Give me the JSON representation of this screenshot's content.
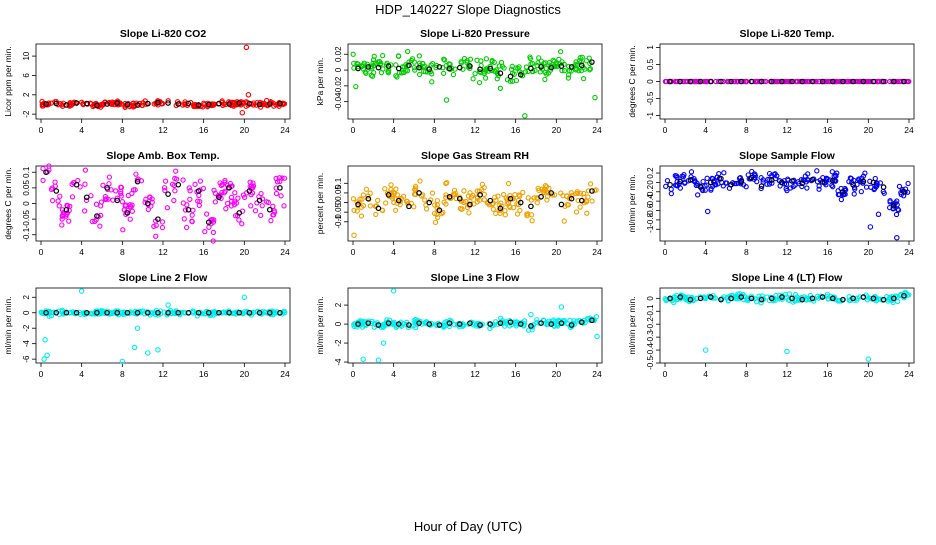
{
  "page_title": "HDP_140227  Slope Diagnostics",
  "x_label": "Hour of Day (UTC)",
  "chart_data": [
    {
      "type": "scatter",
      "title": "Slope Li-820 CO2",
      "ylabel": "Licor ppm per min.",
      "color": "#ff0000",
      "xlim": [
        0,
        24
      ],
      "ylim": [
        -3,
        12.5
      ],
      "xticks": [
        0,
        4,
        8,
        12,
        16,
        20,
        24
      ],
      "yticks": [
        -2,
        2,
        6,
        10
      ],
      "series_spread": 0.45,
      "outliers": [
        {
          "x": 20.2,
          "y": 11.8
        },
        {
          "x": 19.8,
          "y": -1.7
        },
        {
          "x": 20.4,
          "y": 2.0
        }
      ],
      "means": {
        "x": [
          0.5,
          1.5,
          2.5,
          3.5,
          4.5,
          5.5,
          6.5,
          7.5,
          8.5,
          9.5,
          10.5,
          11.5,
          12.5,
          13.5,
          14.5,
          15.5,
          16.5,
          17.5,
          18.5,
          19.5,
          20.5,
          21.5,
          22.5,
          23.5
        ],
        "y": [
          0.1,
          0.2,
          -0.1,
          0.3,
          0.2,
          -0.2,
          0.1,
          0.3,
          0.0,
          -0.1,
          0.2,
          0.4,
          0.3,
          0.1,
          0.2,
          -0.1,
          0.0,
          0.2,
          0.1,
          0.3,
          0.2,
          0.0,
          0.1,
          0.2
        ]
      }
    },
    {
      "type": "scatter",
      "title": "Slope Li-820 Pressure",
      "ylabel": "kPa per min.",
      "color": "#00cc00",
      "xlim": [
        0,
        24
      ],
      "ylim": [
        -0.062,
        0.033
      ],
      "xticks": [
        0,
        4,
        8,
        12,
        16,
        20,
        24
      ],
      "yticks": [
        -0.04,
        -0.02,
        0.0,
        0.02
      ],
      "series_spread": 0.012,
      "outliers": [
        {
          "x": 16.9,
          "y": -0.058
        },
        {
          "x": 23.8,
          "y": -0.035
        },
        {
          "x": 9.2,
          "y": -0.038
        }
      ],
      "means": {
        "x": [
          0.5,
          1.5,
          2.5,
          3.5,
          4.5,
          5.5,
          6.5,
          7.5,
          8.5,
          9.5,
          10.5,
          11.5,
          12.5,
          13.5,
          14.5,
          15.5,
          16.5,
          17.5,
          18.5,
          19.5,
          20.5,
          21.5,
          22.5,
          23.5
        ],
        "y": [
          0.002,
          0.004,
          0.003,
          0.005,
          0.002,
          0.006,
          0.003,
          0.001,
          0.004,
          0.002,
          0.003,
          0.005,
          0.001,
          0.002,
          -0.004,
          -0.008,
          -0.006,
          0.002,
          0.004,
          0.003,
          0.005,
          0.004,
          0.006,
          0.01
        ]
      }
    },
    {
      "type": "scatter",
      "title": "Slope Li-820 Temp.",
      "ylabel": "degrees C per min.",
      "color": "#cc00cc",
      "xlim": [
        0,
        24
      ],
      "ylim": [
        -1.1,
        1.1
      ],
      "xticks": [
        0,
        4,
        8,
        12,
        16,
        20,
        24
      ],
      "yticks": [
        -1.0,
        -0.5,
        0.0,
        0.5,
        1.0
      ],
      "series_spread": 0.0,
      "outliers": [],
      "means": {
        "x": [
          0.5,
          1.5,
          2.5,
          3.5,
          4.5,
          5.5,
          6.5,
          7.5,
          8.5,
          9.5,
          10.5,
          11.5,
          12.5,
          13.5,
          14.5,
          15.5,
          16.5,
          17.5,
          18.5,
          19.5,
          20.5,
          21.5,
          22.5,
          23.5
        ],
        "y": [
          0,
          0,
          0,
          0,
          0,
          0,
          0,
          0,
          0,
          0,
          0,
          0,
          0,
          0,
          0,
          0,
          0,
          0,
          0,
          0,
          0,
          0,
          0,
          0
        ]
      }
    },
    {
      "type": "scatter",
      "title": "Slope Amb. Box Temp.",
      "ylabel": "degrees C per min.",
      "color": "#ff00ff",
      "xlim": [
        0,
        24
      ],
      "ylim": [
        -0.12,
        0.12
      ],
      "xticks": [
        0,
        4,
        8,
        12,
        16,
        20,
        24
      ],
      "yticks": [
        -0.1,
        -0.05,
        0.0,
        0.05,
        0.1
      ],
      "series_spread": 0.05,
      "outliers": [],
      "means": {
        "x": [
          0.5,
          1.5,
          2.5,
          3.5,
          4.5,
          5.5,
          6.5,
          7.5,
          8.5,
          9.5,
          10.5,
          11.5,
          12.5,
          13.5,
          14.5,
          15.5,
          16.5,
          17.5,
          18.5,
          19.5,
          20.5,
          21.5,
          22.5,
          23.5
        ],
        "y": [
          0.1,
          0.04,
          -0.02,
          0.06,
          0.02,
          -0.04,
          0.05,
          0.01,
          -0.03,
          0.07,
          0.0,
          -0.05,
          0.03,
          0.06,
          -0.02,
          0.04,
          -0.06,
          0.02,
          0.05,
          -0.03,
          0.04,
          0.01,
          -0.02,
          0.05
        ]
      }
    },
    {
      "type": "scatter",
      "title": "Slope Gas Stream RH",
      "ylabel": "percent per min.",
      "color": "#f0a000",
      "xlim": [
        0,
        24
      ],
      "ylim": [
        -0.2,
        0.19
      ],
      "xticks": [
        0,
        4,
        8,
        12,
        16,
        20,
        24
      ],
      "yticks": [
        -0.1,
        -0.05,
        0.0,
        0.05,
        0.1
      ],
      "series_spread": 0.06,
      "outliers": [
        {
          "x": 0.1,
          "y": -0.17
        }
      ],
      "means": {
        "x": [
          0.5,
          1.5,
          2.5,
          3.5,
          4.5,
          5.5,
          6.5,
          7.5,
          8.5,
          9.5,
          10.5,
          11.5,
          12.5,
          13.5,
          14.5,
          15.5,
          16.5,
          17.5,
          18.5,
          19.5,
          20.5,
          21.5,
          22.5,
          23.5
        ],
        "y": [
          -0.01,
          0.02,
          -0.03,
          0.04,
          0.01,
          -0.02,
          0.05,
          0.0,
          -0.04,
          0.03,
          0.02,
          -0.01,
          0.04,
          0.01,
          -0.03,
          0.02,
          0.0,
          -0.02,
          0.03,
          0.05,
          -0.01,
          0.02,
          0.01,
          0.06
        ]
      }
    },
    {
      "type": "scatter",
      "title": "Slope Sample Flow",
      "ylabel": "ml/min per min.",
      "color": "#0000ff",
      "xlim": [
        0,
        24
      ],
      "ylim": [
        -1.25,
        0.35
      ],
      "xticks": [
        0,
        4,
        8,
        12,
        16,
        20,
        24
      ],
      "yticks": [
        -1.0,
        -0.8,
        -0.6,
        -0.4,
        -0.2,
        0.0,
        0.2
      ],
      "series_spread": 0.15,
      "outliers": [
        {
          "x": 20.2,
          "y": -0.95
        },
        {
          "x": 22.8,
          "y": -1.18
        },
        {
          "x": 21.0,
          "y": -0.68
        },
        {
          "x": 4.2,
          "y": -0.62
        }
      ],
      "means": {
        "x": [
          0.5,
          1.5,
          2.5,
          3.5,
          4.5,
          5.5,
          6.5,
          7.5,
          8.5,
          9.5,
          10.5,
          11.5,
          12.5,
          13.5,
          14.5,
          15.5,
          16.5,
          17.5,
          18.5,
          19.5,
          20.5,
          21.5,
          22.5,
          23.5
        ],
        "y": [
          -0.05,
          0.02,
          0.05,
          -0.1,
          0.0,
          0.08,
          -0.05,
          0.02,
          0.1,
          -0.08,
          0.05,
          0.0,
          0.03,
          -0.02,
          0.06,
          0.01,
          0.04,
          -0.2,
          -0.05,
          0.02,
          0.0,
          -0.1,
          -0.5,
          -0.2
        ]
      }
    },
    {
      "type": "scatter",
      "title": "Slope Line 2 Flow",
      "ylabel": "ml/min per min.",
      "color": "#00eeee",
      "xlim": [
        0,
        24
      ],
      "ylim": [
        -6.5,
        3.2
      ],
      "xticks": [
        0,
        4,
        8,
        12,
        16,
        20,
        24
      ],
      "yticks": [
        -6,
        -4,
        -2,
        0,
        2
      ],
      "series_spread": 0.25,
      "outliers": [
        {
          "x": 0.3,
          "y": -6.0
        },
        {
          "x": 0.6,
          "y": -5.5
        },
        {
          "x": 0.4,
          "y": -3.5
        },
        {
          "x": 4.0,
          "y": 2.8
        },
        {
          "x": 8.0,
          "y": -6.3
        },
        {
          "x": 9.5,
          "y": -2.0
        },
        {
          "x": 9.2,
          "y": -4.5
        },
        {
          "x": 10.5,
          "y": -5.2
        },
        {
          "x": 11.5,
          "y": -4.8
        },
        {
          "x": 20.0,
          "y": 2.0
        },
        {
          "x": 12.5,
          "y": 1.0
        }
      ],
      "means": {
        "x": [
          0.5,
          1.5,
          2.5,
          3.5,
          4.5,
          5.5,
          6.5,
          7.5,
          8.5,
          9.5,
          10.5,
          11.5,
          12.5,
          13.5,
          14.5,
          15.5,
          16.5,
          17.5,
          18.5,
          19.5,
          20.5,
          21.5,
          22.5,
          23.5
        ],
        "y": [
          0.0,
          0.0,
          0.0,
          0.0,
          0.0,
          0.0,
          0.0,
          0.0,
          0.0,
          0.0,
          0.0,
          0.0,
          0.0,
          0.0,
          0.0,
          0.0,
          0.0,
          0.0,
          0.0,
          0.0,
          0.0,
          0.0,
          0.0,
          0.0
        ]
      }
    },
    {
      "type": "scatter",
      "title": "Slope Line 3 Flow",
      "ylabel": "ml/min per min.",
      "color": "#00eeee",
      "xlim": [
        0,
        24
      ],
      "ylim": [
        -4.1,
        3.8
      ],
      "xticks": [
        0,
        4,
        8,
        12,
        16,
        20,
        24
      ],
      "yticks": [
        -4,
        -2,
        0,
        2
      ],
      "series_spread": 0.35,
      "outliers": [
        {
          "x": 1.0,
          "y": -3.7
        },
        {
          "x": 2.5,
          "y": -3.8
        },
        {
          "x": 4.0,
          "y": 3.5
        },
        {
          "x": 3.0,
          "y": -2.0
        },
        {
          "x": 17.5,
          "y": 1.0
        },
        {
          "x": 20.5,
          "y": 1.8
        },
        {
          "x": 24.0,
          "y": -1.3
        }
      ],
      "means": {
        "x": [
          0.5,
          1.5,
          2.5,
          3.5,
          4.5,
          5.5,
          6.5,
          7.5,
          8.5,
          9.5,
          10.5,
          11.5,
          12.5,
          13.5,
          14.5,
          15.5,
          16.5,
          17.5,
          18.5,
          19.5,
          20.5,
          21.5,
          22.5,
          23.5
        ],
        "y": [
          0.0,
          0.1,
          -0.1,
          0.1,
          0.0,
          -0.1,
          0.1,
          0.0,
          -0.1,
          0.1,
          0.0,
          0.1,
          -0.1,
          0.0,
          0.1,
          0.2,
          0.0,
          -0.2,
          0.1,
          0.0,
          0.1,
          -0.1,
          0.2,
          0.4
        ]
      }
    },
    {
      "type": "scatter",
      "title": "Slope Line 4 (LT) Flow",
      "ylabel": "ml/min per min.",
      "color": "#00eeee",
      "xlim": [
        0,
        24
      ],
      "ylim": [
        -0.5,
        0.08
      ],
      "xticks": [
        0,
        4,
        8,
        12,
        16,
        20,
        24
      ],
      "yticks": [
        -0.5,
        -0.4,
        -0.3,
        -0.2,
        -0.1,
        0.0
      ],
      "series_spread": 0.025,
      "outliers": [
        {
          "x": 4.0,
          "y": -0.4
        },
        {
          "x": 12.0,
          "y": -0.41
        },
        {
          "x": 20.0,
          "y": -0.47
        }
      ],
      "means": {
        "x": [
          0.5,
          1.5,
          2.5,
          3.5,
          4.5,
          5.5,
          6.5,
          7.5,
          8.5,
          9.5,
          10.5,
          11.5,
          12.5,
          13.5,
          14.5,
          15.5,
          16.5,
          17.5,
          18.5,
          19.5,
          20.5,
          21.5,
          22.5,
          23.5
        ],
        "y": [
          0.0,
          0.01,
          -0.01,
          0.0,
          0.01,
          -0.01,
          0.0,
          0.01,
          0.0,
          -0.01,
          0.0,
          0.01,
          0.0,
          -0.01,
          0.0,
          0.01,
          0.0,
          -0.01,
          0.0,
          0.01,
          0.0,
          -0.01,
          0.0,
          0.02
        ]
      }
    }
  ]
}
